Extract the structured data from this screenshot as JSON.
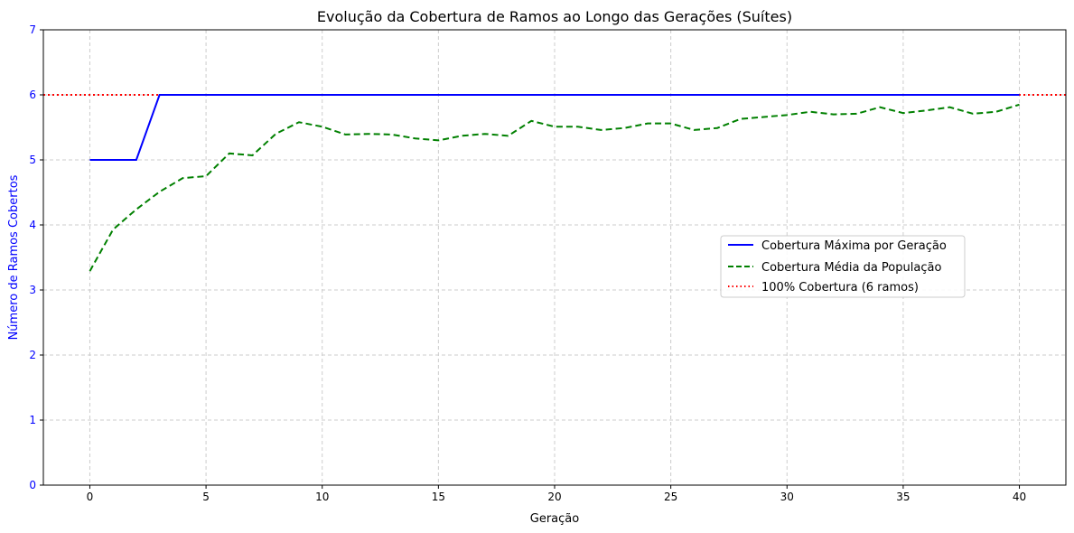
{
  "chart_data": {
    "type": "line",
    "title": "Evolução da Cobertura de Ramos ao Longo das Gerações (Suítes)",
    "xlabel": "Geração",
    "ylabel": "Número de Ramos Cobertos",
    "xlim": [
      -2,
      42
    ],
    "ylim": [
      0,
      7
    ],
    "xticks": [
      0,
      5,
      10,
      15,
      20,
      25,
      30,
      35,
      40
    ],
    "yticks": [
      0,
      1,
      2,
      3,
      4,
      5,
      6,
      7
    ],
    "grid": true,
    "legend_position": "center-right",
    "x": [
      0,
      1,
      2,
      3,
      4,
      5,
      6,
      7,
      8,
      9,
      10,
      11,
      12,
      13,
      14,
      15,
      16,
      17,
      18,
      19,
      20,
      21,
      22,
      23,
      24,
      25,
      26,
      27,
      28,
      29,
      30,
      31,
      32,
      33,
      34,
      35,
      36,
      37,
      38,
      39,
      40
    ],
    "series": [
      {
        "name": "Cobertura Máxima por Geração",
        "color": "#0000ff",
        "style": "solid",
        "values": [
          5,
          5,
          5,
          6,
          6,
          6,
          6,
          6,
          6,
          6,
          6,
          6,
          6,
          6,
          6,
          6,
          6,
          6,
          6,
          6,
          6,
          6,
          6,
          6,
          6,
          6,
          6,
          6,
          6,
          6,
          6,
          6,
          6,
          6,
          6,
          6,
          6,
          6,
          6,
          6,
          6
        ]
      },
      {
        "name": "Cobertura Média da População",
        "color": "#008000",
        "style": "dashed",
        "values": [
          3.29,
          3.93,
          4.24,
          4.51,
          4.72,
          4.75,
          5.1,
          5.07,
          5.4,
          5.58,
          5.51,
          5.39,
          5.4,
          5.39,
          5.33,
          5.3,
          5.37,
          5.4,
          5.37,
          5.6,
          5.51,
          5.51,
          5.46,
          5.49,
          5.56,
          5.56,
          5.46,
          5.49,
          5.63,
          5.66,
          5.69,
          5.74,
          5.7,
          5.71,
          5.81,
          5.72,
          5.76,
          5.81,
          5.71,
          5.74,
          5.85
        ]
      }
    ],
    "reference_lines": [
      {
        "name": "100% Cobertura (6 ramos)",
        "y": 6,
        "color": "#ff0000",
        "style": "dotted"
      }
    ],
    "colors": {
      "axis_label_y": "#0000ff",
      "tick_label_y": "#0000ff",
      "grid": "#cccccc"
    }
  }
}
